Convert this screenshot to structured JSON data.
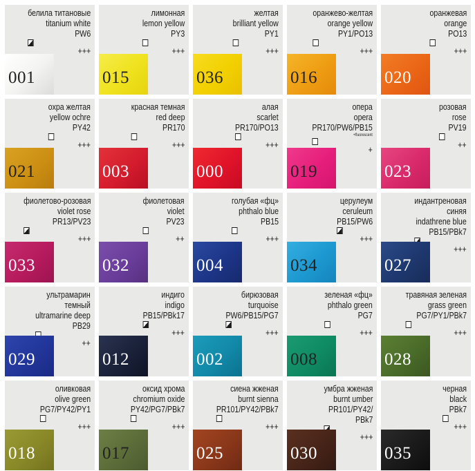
{
  "colors": [
    {
      "ru": [
        "белила титановые"
      ],
      "en": [
        "titanium white"
      ],
      "pig": [
        "PW6"
      ],
      "lf": "half",
      "stars": "+++",
      "num": "001",
      "swatch": "#ffffff",
      "text": "dark"
    },
    {
      "ru": [
        "лимонная"
      ],
      "en": [
        "lemon yellow"
      ],
      "pig": [
        "PY3"
      ],
      "lf": "empty",
      "stars": "+++",
      "num": "015",
      "swatch": "#f0e61e",
      "text": "dark"
    },
    {
      "ru": [
        "желтая"
      ],
      "en": [
        "brilliant yellow"
      ],
      "pig": [
        "PY1"
      ],
      "lf": "empty",
      "stars": "+++",
      "num": "036",
      "swatch": "#f3d500",
      "text": "dark"
    },
    {
      "ru": [
        "оранжево-желтая"
      ],
      "en": [
        "orange yellow"
      ],
      "pig": [
        "PY1/PO13"
      ],
      "lf": "empty",
      "stars": "+++",
      "num": "016",
      "swatch": "#f0a314",
      "text": "dark"
    },
    {
      "ru": [
        "оранжевая"
      ],
      "en": [
        "orange"
      ],
      "pig": [
        "PO13"
      ],
      "lf": "empty",
      "stars": "+++",
      "num": "020",
      "swatch": "#ec6c1b",
      "text": "light"
    },
    {
      "ru": [
        "охра желтая"
      ],
      "en": [
        "yellow ochre"
      ],
      "pig": [
        "PY42"
      ],
      "lf": "empty",
      "stars": "+++",
      "num": "021",
      "swatch": "#cf9417",
      "text": "dark"
    },
    {
      "ru": [
        "красная темная"
      ],
      "en": [
        "red deep"
      ],
      "pig": [
        "PR170"
      ],
      "lf": "empty",
      "stars": "+++",
      "num": "003",
      "swatch": "#d71f30",
      "text": "light"
    },
    {
      "ru": [
        "алая"
      ],
      "en": [
        "scarlet"
      ],
      "pig": [
        "PR170/PO13"
      ],
      "lf": "empty",
      "stars": "+++",
      "num": "000",
      "swatch": "#e3182c",
      "text": "light"
    },
    {
      "ru": [
        "опера"
      ],
      "en": [
        "opera"
      ],
      "pig": [
        "PR170/PW6/PB15"
      ],
      "fluor": "+fluorescent",
      "lf": "empty",
      "stars": "+",
      "num": "019",
      "swatch": "#e9217e",
      "text": "dark"
    },
    {
      "ru": [
        "розовая"
      ],
      "en": [
        "rose"
      ],
      "pig": [
        "PV19"
      ],
      "lf": "empty",
      "stars": "++",
      "num": "023",
      "swatch": "#dd2e6f",
      "text": "light"
    },
    {
      "ru": [
        "фиолетово-розовая"
      ],
      "en": [
        "violet rose"
      ],
      "pig": [
        "PR13/PV23"
      ],
      "lf": "half",
      "stars": "+++",
      "num": "033",
      "swatch": "#bf2266",
      "text": "light"
    },
    {
      "ru": [
        "фиолетовая"
      ],
      "en": [
        "violet"
      ],
      "pig": [
        "PV23"
      ],
      "lf": "empty",
      "stars": "++",
      "num": "032",
      "swatch": "#6a3e9c",
      "text": "light"
    },
    {
      "ru": [
        "голубая «фц»"
      ],
      "en": [
        "phthalo blue"
      ],
      "pig": [
        "PB15"
      ],
      "lf": "empty",
      "stars": "+++",
      "num": "004",
      "swatch": "#1f3a8e",
      "text": "light"
    },
    {
      "ru": [
        "церулеум"
      ],
      "en": [
        "ceruleum"
      ],
      "pig": [
        "PB15/PW6"
      ],
      "lf": "half",
      "stars": "+++",
      "num": "034",
      "swatch": "#1d9bd3",
      "text": "dark"
    },
    {
      "ru": [
        "индантреновая",
        "синяя"
      ],
      "en": [
        "indathrene blue"
      ],
      "pig": [
        "PB15/PBk7"
      ],
      "lf": "half",
      "stars": "+++",
      "num": "027",
      "swatch": "#1f3a74",
      "text": "light"
    },
    {
      "ru": [
        "ультрамарин",
        "темный"
      ],
      "en": [
        "ultramarine deep"
      ],
      "pig": [
        "PB29"
      ],
      "lf": "empty",
      "stars": "++",
      "num": "029",
      "swatch": "#253a9e",
      "text": "light"
    },
    {
      "ru": [
        "индиго"
      ],
      "en": [
        "indigo"
      ],
      "pig": [
        "PB15/PBk17"
      ],
      "lf": "half",
      "stars": "+++",
      "num": "012",
      "swatch": "#1b2340",
      "text": "light"
    },
    {
      "ru": [
        "бирюзовая"
      ],
      "en": [
        "turquoise"
      ],
      "pig": [
        "PW6/PB15/PG7"
      ],
      "lf": "half",
      "stars": "+++",
      "num": "002",
      "swatch": "#128cab",
      "text": "light"
    },
    {
      "ru": [
        "зеленая «фц»"
      ],
      "en": [
        "phthalo green"
      ],
      "pig": [
        "PG7"
      ],
      "lf": "empty",
      "stars": "+++",
      "num": "008",
      "swatch": "#0f8f66",
      "text": "dark"
    },
    {
      "ru": [
        "травяная зеленая"
      ],
      "en": [
        "grass green"
      ],
      "pig": [
        "PG7/PY1/PBk7"
      ],
      "lf": "empty",
      "stars": "+++",
      "num": "028",
      "swatch": "#4b6e2b",
      "text": "light"
    },
    {
      "ru": [
        "оливковая"
      ],
      "en": [
        "olive green"
      ],
      "pig": [
        "PG7/PY42/PY1"
      ],
      "lf": "empty",
      "stars": "+++",
      "num": "018",
      "swatch": "#8a8a2a",
      "text": "light"
    },
    {
      "ru": [
        "оксид хрома"
      ],
      "en": [
        "chromium oxide"
      ],
      "pig": [
        "PY42/PG7/PBk7"
      ],
      "lf": "empty",
      "stars": "+++",
      "num": "017",
      "swatch": "#5e6e3b",
      "text": "dark"
    },
    {
      "ru": [
        "сиена жженая"
      ],
      "en": [
        "burnt sienna"
      ],
      "pig": [
        "PR101/PY42/PBk7"
      ],
      "lf": "empty",
      "stars": "+++",
      "num": "025",
      "swatch": "#8d3a1a",
      "text": "light"
    },
    {
      "ru": [
        "умбра жженая"
      ],
      "en": [
        "burnt umber"
      ],
      "pig": [
        "PR101/PY42/",
        "PBk7"
      ],
      "lf": "half",
      "stars": "+++",
      "num": "030",
      "swatch": "#4a2619",
      "text": "light"
    },
    {
      "ru": [
        "черная"
      ],
      "en": [
        "black"
      ],
      "pig": [
        "PBk7"
      ],
      "lf": "empty",
      "stars": "+++",
      "num": "035",
      "swatch": "#1c1c1c",
      "text": "light"
    }
  ]
}
